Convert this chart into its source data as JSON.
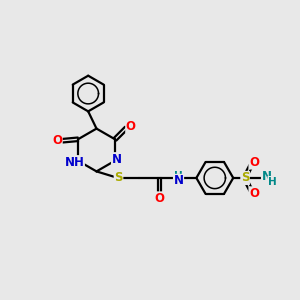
{
  "bg_color": "#e8e8e8",
  "atom_colors": {
    "C": "#000000",
    "N": "#0000cc",
    "O": "#ff0000",
    "S": "#aaaa00",
    "H": "#008888"
  },
  "bond_color": "#000000",
  "bond_width": 1.6,
  "figsize": [
    3.0,
    3.0
  ],
  "dpi": 100
}
